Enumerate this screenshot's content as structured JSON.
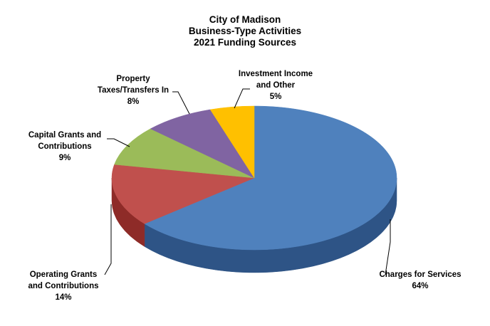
{
  "chart_data": {
    "type": "pie",
    "title": [
      "City of Madison",
      "Business-Type Activities",
      "2021 Funding Sources"
    ],
    "slices": [
      {
        "label": [
          "Charges for Services"
        ],
        "value": 64,
        "pct_label": "64%",
        "color": "#4F81BD",
        "side": "#2E5486"
      },
      {
        "label": [
          "Operating Grants",
          "and Contributions"
        ],
        "value": 14,
        "pct_label": "14%",
        "color": "#C0504D",
        "side": "#8E2B28"
      },
      {
        "label": [
          "Capital Grants and",
          "Contributions"
        ],
        "value": 9,
        "pct_label": "9%",
        "color": "#9BBB59",
        "side": "#6B8A2E"
      },
      {
        "label": [
          "Property",
          "Taxes/Transfers In"
        ],
        "value": 8,
        "pct_label": "8%",
        "color": "#8064A2",
        "side": "#5A4377"
      },
      {
        "label": [
          "Investment Income",
          "and Other"
        ],
        "value": 5,
        "pct_label": "5%",
        "color": "#FFC000",
        "side": "#C99500"
      }
    ]
  }
}
